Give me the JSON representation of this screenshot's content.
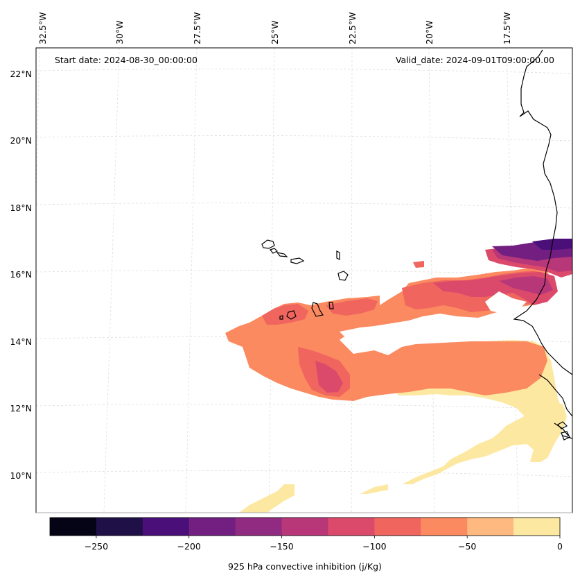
{
  "map": {
    "start_date": "Start date: 2024-08-30_00:00:00",
    "valid_date": "Valid_date: 2024-09-01T09:00:00.00",
    "lon_ticks": [
      "32.5°W",
      "30°W",
      "27.5°W",
      "25°W",
      "22.5°W",
      "20°W",
      "17.5°W"
    ],
    "lat_ticks": [
      "22°N",
      "20°N",
      "18°N",
      "16°N",
      "14°N",
      "12°N",
      "10°N"
    ],
    "background_color": "#ffffff",
    "gridlines": true,
    "coastline_color": "#000000"
  },
  "colorbar": {
    "label": "925 hPa convective inhibition (j/Kg)",
    "tick_labels": [
      "−250",
      "−200",
      "−150",
      "−100",
      "−50",
      "0"
    ],
    "range": [
      -275,
      0
    ],
    "colormap": "magma",
    "colors": [
      "#050416",
      "#1f1147",
      "#4b0f7a",
      "#721f81",
      "#912b81",
      "#b73779",
      "#dc4a6b",
      "#f0655e",
      "#fb8a60",
      "#fdb97f",
      "#fde8a2"
    ],
    "levels": [
      -275,
      -250,
      -225,
      -200,
      -175,
      -150,
      -125,
      -100,
      -75,
      -50,
      -25,
      0
    ]
  }
}
